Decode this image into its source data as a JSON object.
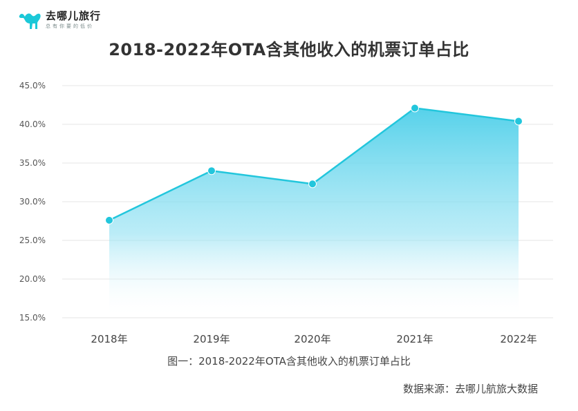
{
  "logo": {
    "icon": "camel-icon",
    "name": "去哪儿旅行",
    "slogan": "总有你要的低价",
    "color": "#1bc8d8"
  },
  "caption": "图一：2018-2022年OTA含其他收入的机票订单占比",
  "source": "数据来源：去哪儿航旅大数据",
  "chart_data": {
    "type": "area",
    "title": "2018-2022年OTA含其他收入的机票订单占比",
    "categories": [
      "2018年",
      "2019年",
      "2020年",
      "2021年",
      "2022年"
    ],
    "values": [
      27.6,
      34.0,
      32.3,
      42.1,
      40.4
    ],
    "ylim": [
      15,
      45
    ],
    "yticks": [
      15,
      20,
      25,
      30,
      35,
      40,
      45
    ],
    "ytick_labels": [
      "15.0%",
      "20.0%",
      "25.0%",
      "30.0%",
      "35.0%",
      "40.0%",
      "45.0%"
    ],
    "xlabel": "",
    "ylabel": "",
    "grid": true,
    "line_color": "#22c6dc",
    "fill_color": "#5fd3ea"
  }
}
